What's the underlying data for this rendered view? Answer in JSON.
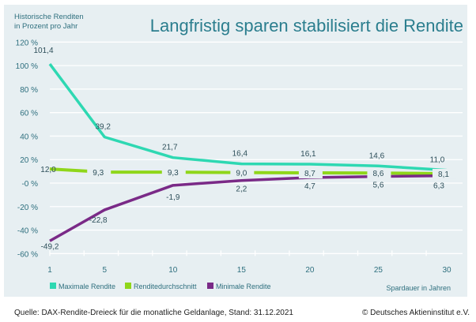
{
  "chart_data": {
    "type": "line",
    "title": "Langfristig sparen stabilisiert die Rendite",
    "ylabel": "Historische Renditen\nin Prozent pro Jahr",
    "xlabel": "Spardauer in Jahren",
    "x": [
      1,
      5,
      10,
      15,
      20,
      25,
      30
    ],
    "xticklabels": [
      "1",
      "5",
      "10",
      "15",
      "20",
      "25",
      "30"
    ],
    "ylim": [
      -60,
      120
    ],
    "yticks": [
      120,
      100,
      80,
      60,
      40,
      20,
      0,
      -20,
      -40,
      -60
    ],
    "yticklabels": [
      "120 %",
      "100 %",
      "80 %",
      "60 %",
      "40 %",
      "20 %",
      "-0 %",
      "-20 %",
      "-40 %",
      "-60 %"
    ],
    "grid": true,
    "legend_position": "bottom",
    "series": [
      {
        "name": "Maximale Rendite",
        "color": "#2ed8b2",
        "values": [
          101.4,
          39.2,
          21.7,
          16.4,
          16.1,
          14.6,
          11.0
        ],
        "labels": [
          "101,4",
          "39,2",
          "21,7",
          "16,4",
          "16,1",
          "14,6",
          "11,0"
        ]
      },
      {
        "name": "Renditedurchschnitt",
        "color": "#8fd61a",
        "values": [
          12.0,
          9.3,
          9.3,
          9.0,
          8.7,
          8.6,
          8.1
        ],
        "labels": [
          "12,0",
          "9,3",
          "9,3",
          "9,0",
          "8,7",
          "8,6",
          "8,1"
        ]
      },
      {
        "name": "Minimale Rendite",
        "color": "#7a2a87",
        "values": [
          -49.2,
          -22.8,
          -1.9,
          2.2,
          4.7,
          5.6,
          6.3
        ],
        "labels": [
          "-49,2",
          "-22,8",
          "-1,9",
          "2,2",
          "4,7",
          "5,6",
          "6,3"
        ]
      }
    ]
  },
  "footer": {
    "source": "Quelle: DAX-Rendite-Dreieck für die monatliche Geldanlage, Stand: 31.12.2021",
    "copyright": "© Deutsches Aktieninstitut e.V."
  }
}
